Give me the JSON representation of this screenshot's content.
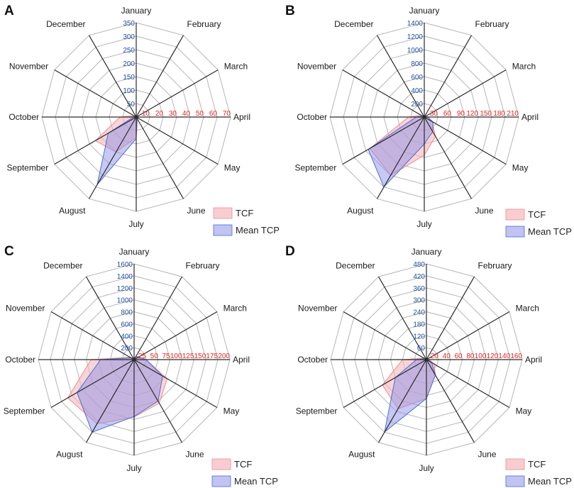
{
  "colors": {
    "tcf_fill": "#f5b8bd",
    "tcf_stroke": "#f08a92",
    "tcp_fill": "#8f92e8",
    "tcp_stroke": "#4a6fd0",
    "grid": "#b5b5b5",
    "spoke": "#2a2a2a",
    "tcp_ticks": "#1f4e9c",
    "tcf_ticks": "#e8231f"
  },
  "chart_data": [
    {
      "type": "radar",
      "panel": "A",
      "categories": [
        "January",
        "February",
        "March",
        "April",
        "May",
        "June",
        "July",
        "August",
        "September",
        "October",
        "November",
        "December"
      ],
      "tcp_axis": {
        "max": 350,
        "ticks": [
          "50",
          "100",
          "150",
          "200",
          "250",
          "300",
          "350"
        ]
      },
      "tcf_axis": {
        "max": 70,
        "ticks": [
          "10",
          "20",
          "30",
          "40",
          "50",
          "60",
          "70"
        ]
      },
      "series": [
        {
          "name": "TCF",
          "scale": "tcf",
          "values": [
            1,
            1,
            1,
            1,
            2,
            2,
            15,
            30,
            35,
            12,
            2,
            1
          ]
        },
        {
          "name": "Mean TCP",
          "scale": "tcp",
          "values": [
            2,
            2,
            2,
            2,
            5,
            5,
            80,
            290,
            120,
            10,
            5,
            3
          ]
        }
      ],
      "legend": [
        "TCF",
        "Mean TCP"
      ]
    },
    {
      "type": "radar",
      "panel": "B",
      "categories": [
        "January",
        "February",
        "March",
        "April",
        "May",
        "June",
        "July",
        "August",
        "September",
        "October",
        "November",
        "December"
      ],
      "tcp_axis": {
        "max": 1400,
        "ticks": [
          "200",
          "400",
          "600",
          "800",
          "1000",
          "1200",
          "1400"
        ]
      },
      "tcf_axis": {
        "max": 210,
        "ticks": [
          "30",
          "60",
          "90",
          "120",
          "150",
          "180",
          "210"
        ]
      },
      "series": [
        {
          "name": "TCF",
          "scale": "tcf",
          "values": [
            2,
            2,
            3,
            8,
            20,
            50,
            85,
            150,
            140,
            35,
            8,
            2
          ]
        },
        {
          "name": "Mean TCP",
          "scale": "tcp",
          "values": [
            5,
            5,
            10,
            50,
            150,
            250,
            400,
            1200,
            960,
            120,
            30,
            10
          ]
        }
      ],
      "legend": [
        "TCF",
        "Mean TCP"
      ]
    },
    {
      "type": "radar",
      "panel": "C",
      "categories": [
        "January",
        "February",
        "March",
        "April",
        "May",
        "June",
        "July",
        "August",
        "September",
        "October",
        "November",
        "December"
      ],
      "tcp_axis": {
        "max": 1600,
        "ticks": [
          "200",
          "400",
          "600",
          "800",
          "1000",
          "1200",
          "1400",
          "1600"
        ]
      },
      "tcf_axis": {
        "max": 200,
        "ticks": [
          "25",
          "50",
          "75",
          "100",
          "125",
          "150",
          "175",
          "200"
        ]
      },
      "series": [
        {
          "name": "TCF",
          "scale": "tcf",
          "values": [
            2,
            5,
            8,
            25,
            80,
            105,
            120,
            155,
            160,
            90,
            10,
            3
          ]
        },
        {
          "name": "Mean TCP",
          "scale": "tcp",
          "values": [
            20,
            60,
            90,
            200,
            550,
            800,
            950,
            1400,
            1100,
            560,
            60,
            20
          ]
        }
      ],
      "legend": [
        "TCF",
        "Mean TCP"
      ]
    },
    {
      "type": "radar",
      "panel": "D",
      "categories": [
        "January",
        "February",
        "March",
        "April",
        "May",
        "June",
        "July",
        "August",
        "September",
        "October",
        "November",
        "December"
      ],
      "tcp_axis": {
        "max": 480,
        "ticks": [
          "60",
          "120",
          "180",
          "240",
          "300",
          "360",
          "420",
          "480"
        ]
      },
      "tcf_axis": {
        "max": 160,
        "ticks": [
          "20",
          "40",
          "60",
          "80",
          "100",
          "120",
          "140",
          "160"
        ]
      },
      "series": [
        {
          "name": "TCF",
          "scale": "tcf",
          "values": [
            1,
            2,
            2,
            5,
            15,
            30,
            65,
            95,
            85,
            40,
            5,
            2
          ]
        },
        {
          "name": "Mean TCP",
          "scale": "tcp",
          "values": [
            3,
            5,
            5,
            8,
            30,
            90,
            195,
            420,
            180,
            50,
            10,
            5
          ]
        }
      ],
      "legend": [
        "TCF",
        "Mean TCP"
      ]
    }
  ]
}
